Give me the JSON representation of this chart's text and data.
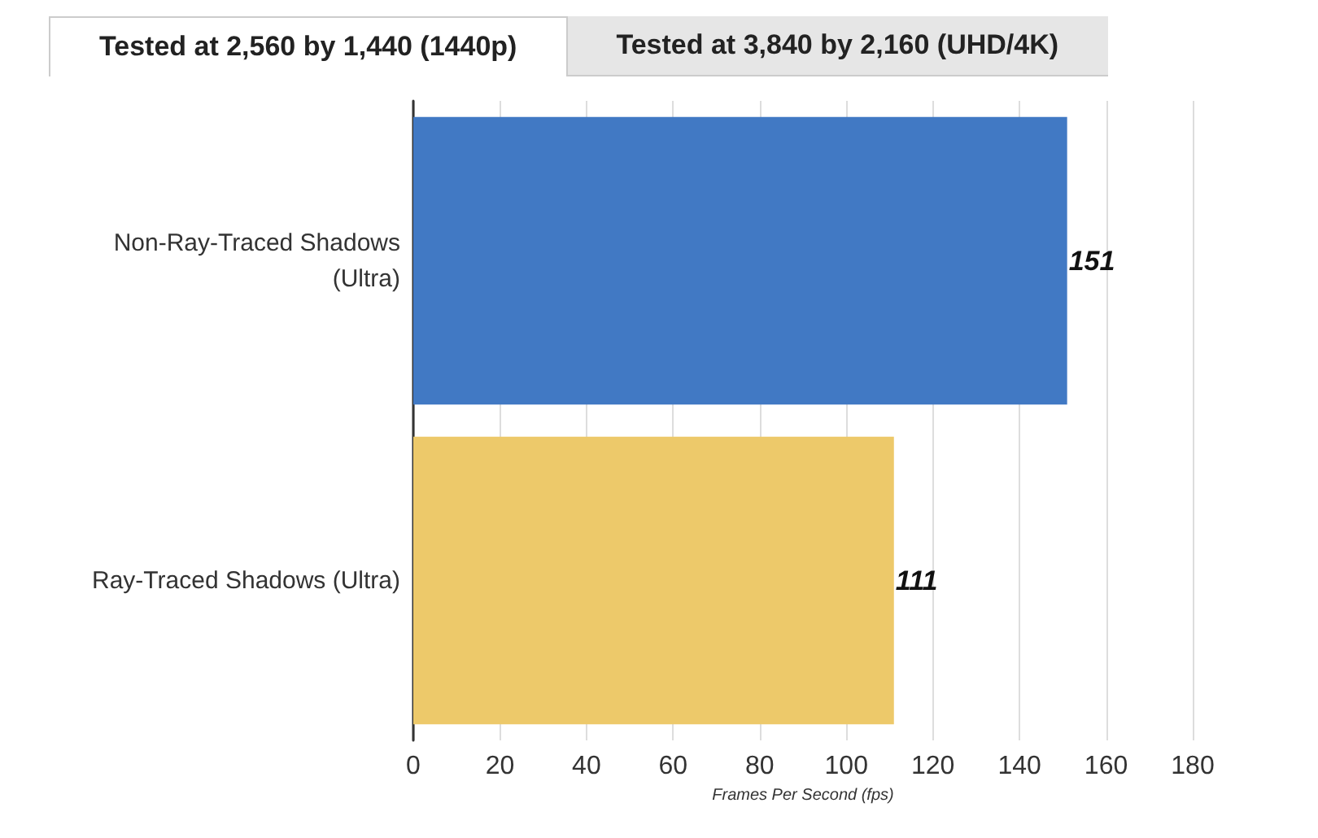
{
  "chart_data": {
    "type": "bar",
    "orientation": "horizontal",
    "categories": [
      "Non-Ray-Traced Shadows\n(Ultra)",
      "Ray-Traced Shadows (Ultra)"
    ],
    "values": [
      151,
      111
    ],
    "colors": [
      "#4179c4",
      "#edc96a"
    ],
    "xlim": [
      0,
      180
    ],
    "xticks": [
      0,
      20,
      40,
      60,
      80,
      100,
      120,
      140,
      160,
      180
    ],
    "xlabel": "Frames Per Second (fps)",
    "grid": "x",
    "data_labels": true,
    "annotations": [
      "Tested at 2,560 by 1,440 (1440p)",
      "Tested at 3,840 by 2,160 (UHD/4K)"
    ]
  }
}
